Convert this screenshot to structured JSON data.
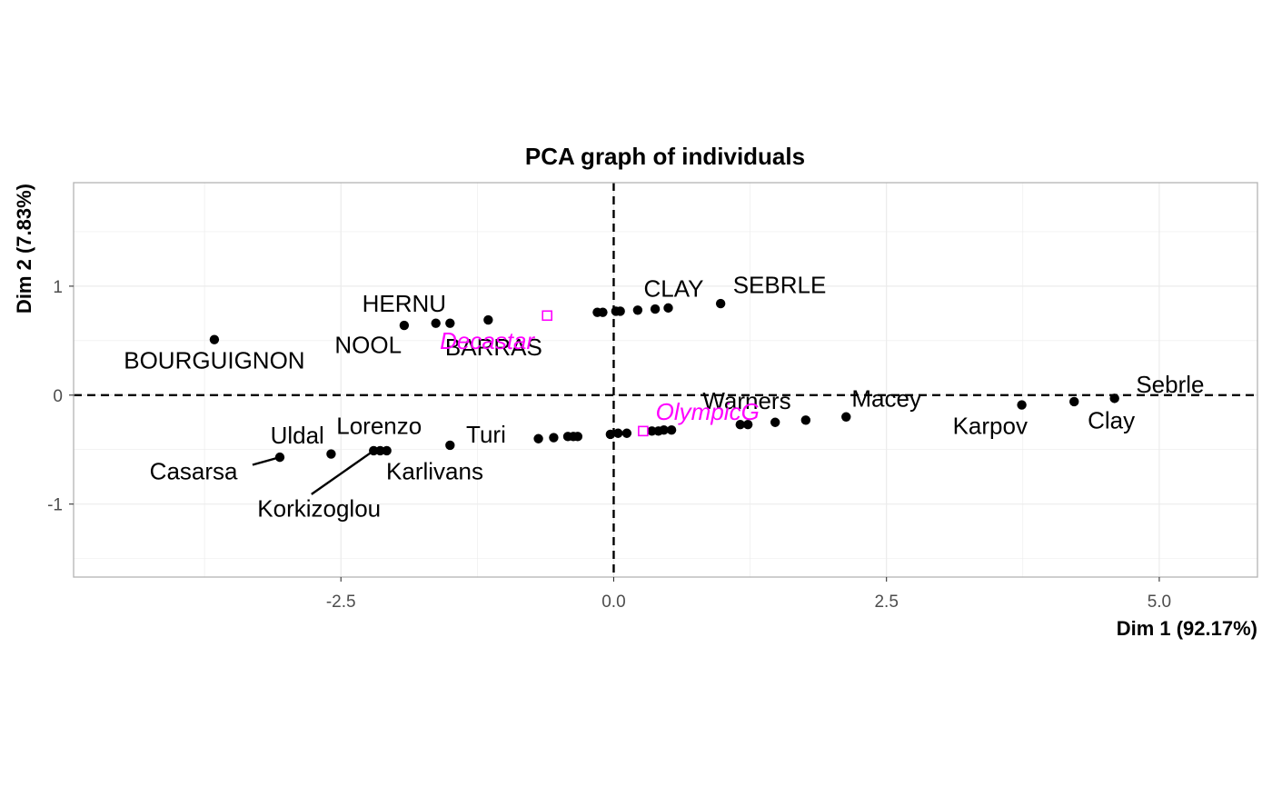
{
  "chart_data": {
    "type": "scatter",
    "title": "PCA graph of individuals",
    "xlabel": "Dim 1 (92.17%)",
    "ylabel": "Dim 2 (7.83%)",
    "xlim": [
      -4.95,
      5.9
    ],
    "ylim": [
      -1.67,
      1.95
    ],
    "x_ticks": [
      -2.5,
      0.0,
      2.5,
      5.0
    ],
    "x_tick_labels": [
      "-2.5",
      "0.0",
      "2.5",
      "5.0"
    ],
    "y_ticks": [
      -1,
      0,
      1
    ],
    "y_tick_labels": [
      "-1",
      "0",
      "1"
    ],
    "grid": true,
    "reference_lines": [
      {
        "axis": "x",
        "value": 0,
        "style": "dashed"
      },
      {
        "axis": "y",
        "value": 0,
        "style": "dashed"
      }
    ],
    "colors": {
      "individuals": "#000000",
      "supplementary": "#ff00ff",
      "grid": "#ebebeb",
      "border": "#b3b3b3"
    },
    "points": [
      {
        "x": -3.66,
        "y": 0.51
      },
      {
        "x": -1.92,
        "y": 0.64
      },
      {
        "x": -1.63,
        "y": 0.66
      },
      {
        "x": -1.5,
        "y": 0.66
      },
      {
        "x": -1.15,
        "y": 0.69
      },
      {
        "x": -0.15,
        "y": 0.76
      },
      {
        "x": -0.1,
        "y": 0.76
      },
      {
        "x": 0.02,
        "y": 0.77
      },
      {
        "x": 0.06,
        "y": 0.77
      },
      {
        "x": 0.22,
        "y": 0.78
      },
      {
        "x": 0.38,
        "y": 0.79
      },
      {
        "x": 0.5,
        "y": 0.8
      },
      {
        "x": 0.98,
        "y": 0.84
      },
      {
        "x": -3.06,
        "y": -0.57
      },
      {
        "x": -2.59,
        "y": -0.54
      },
      {
        "x": -2.2,
        "y": -0.51
      },
      {
        "x": -2.14,
        "y": -0.51
      },
      {
        "x": -2.08,
        "y": -0.51
      },
      {
        "x": -1.5,
        "y": -0.46
      },
      {
        "x": -0.69,
        "y": -0.4
      },
      {
        "x": -0.55,
        "y": -0.39
      },
      {
        "x": -0.42,
        "y": -0.38
      },
      {
        "x": -0.37,
        "y": -0.38
      },
      {
        "x": -0.33,
        "y": -0.38
      },
      {
        "x": -0.03,
        "y": -0.36
      },
      {
        "x": 0.04,
        "y": -0.35
      },
      {
        "x": 0.12,
        "y": -0.35
      },
      {
        "x": 0.35,
        "y": -0.33
      },
      {
        "x": 0.41,
        "y": -0.33
      },
      {
        "x": 0.46,
        "y": -0.32
      },
      {
        "x": 0.53,
        "y": -0.32
      },
      {
        "x": 1.16,
        "y": -0.27
      },
      {
        "x": 1.23,
        "y": -0.27
      },
      {
        "x": 1.48,
        "y": -0.25
      },
      {
        "x": 1.76,
        "y": -0.23
      },
      {
        "x": 2.13,
        "y": -0.2
      },
      {
        "x": 3.74,
        "y": -0.09
      },
      {
        "x": 4.22,
        "y": -0.06
      },
      {
        "x": 4.59,
        "y": -0.03
      }
    ],
    "labels": [
      {
        "text": "BOURGUIGNON",
        "x": -3.66,
        "y": 0.32
      },
      {
        "text": "HERNU",
        "x": -1.92,
        "y": 0.84
      },
      {
        "text": "NOOL",
        "x": -2.25,
        "y": 0.46
      },
      {
        "text": "BARRAS",
        "x": -1.1,
        "y": 0.44
      },
      {
        "text": "CLAY",
        "x": 0.55,
        "y": 0.98
      },
      {
        "text": "SEBRLE",
        "x": 1.52,
        "y": 1.01
      },
      {
        "text": "Uldal",
        "x": -2.9,
        "y": -0.37
      },
      {
        "text": "Lorenzo",
        "x": -2.15,
        "y": -0.28
      },
      {
        "text": "Turi",
        "x": -1.17,
        "y": -0.36
      },
      {
        "text": "Casarsa",
        "x": -3.85,
        "y": -0.7
      },
      {
        "text": "Karlivans",
        "x": -1.64,
        "y": -0.7
      },
      {
        "text": "Korkizoglou",
        "x": -2.7,
        "y": -1.04
      },
      {
        "text": "Warners",
        "x": 1.22,
        "y": -0.05
      },
      {
        "text": "Macey",
        "x": 2.5,
        "y": -0.03
      },
      {
        "text": "Karpov",
        "x": 3.45,
        "y": -0.28
      },
      {
        "text": "Clay",
        "x": 4.56,
        "y": -0.23
      },
      {
        "text": "Sebrle",
        "x": 5.1,
        "y": 0.1
      }
    ],
    "connectors": [
      {
        "from": [
          -3.31,
          -0.64
        ],
        "to": [
          -3.06,
          -0.57
        ]
      },
      {
        "from": [
          -2.77,
          -0.91
        ],
        "to": [
          -2.2,
          -0.51
        ]
      }
    ],
    "supplementary": [
      {
        "name": "Decastar",
        "x": -0.61,
        "y": 0.73,
        "label_x": -1.16,
        "label_y": 0.5
      },
      {
        "name": "OlympicG",
        "x": 0.27,
        "y": -0.33,
        "label_x": 0.86,
        "label_y": -0.15
      }
    ]
  }
}
